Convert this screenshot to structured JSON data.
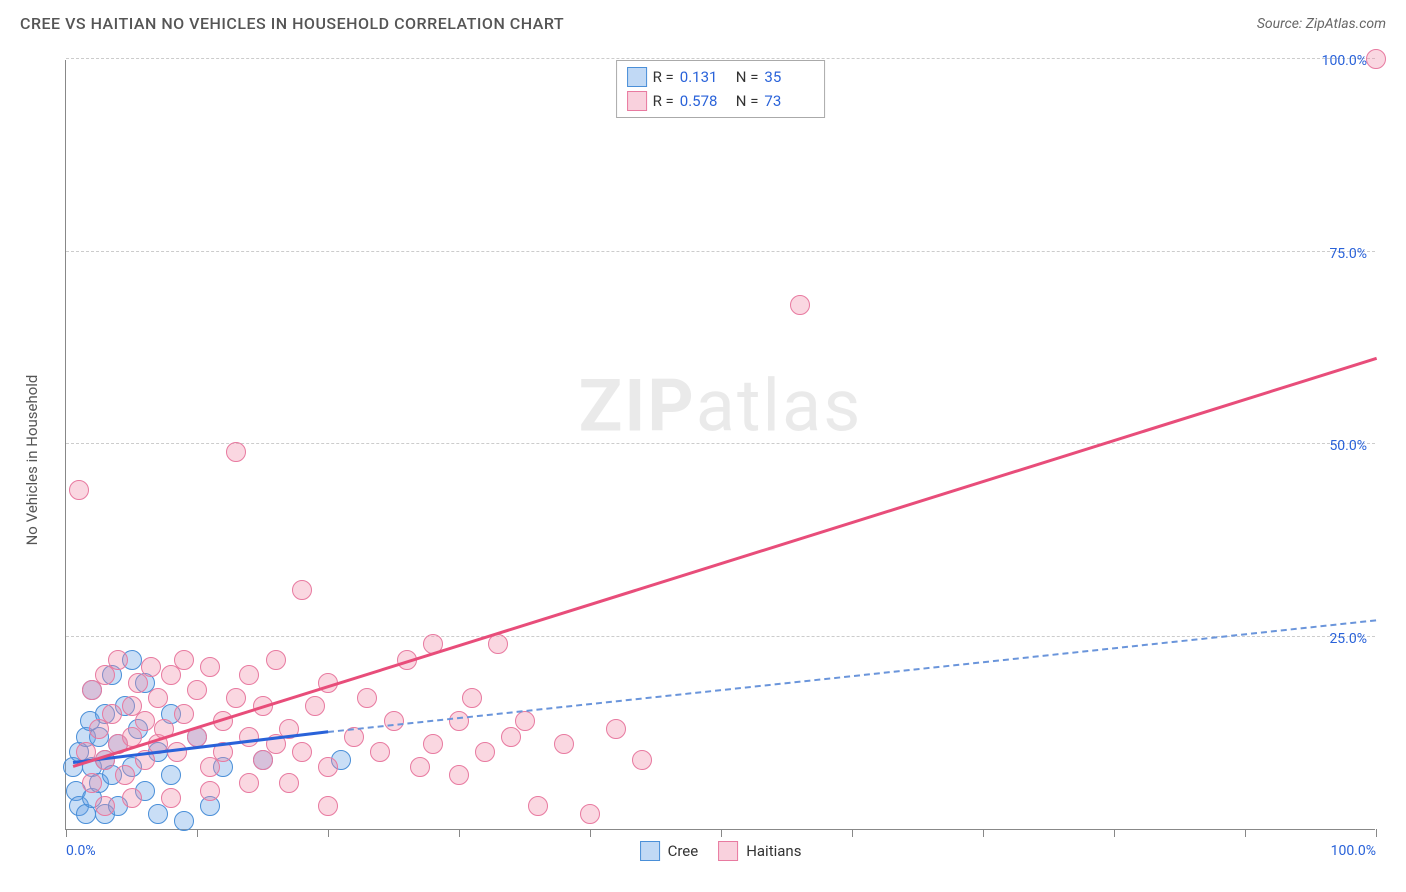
{
  "title": "CREE VS HAITIAN NO VEHICLES IN HOUSEHOLD CORRELATION CHART",
  "source": "Source: ZipAtlas.com",
  "y_axis_label": "No Vehicles in Household",
  "watermark_bold": "ZIP",
  "watermark_light": "atlas",
  "chart": {
    "type": "scatter",
    "xlim": [
      0,
      100
    ],
    "ylim": [
      0,
      100
    ],
    "y_ticks": [
      25,
      50,
      75,
      100
    ],
    "y_tick_labels": [
      "25.0%",
      "50.0%",
      "75.0%",
      "100.0%"
    ],
    "x_ticks": [
      0,
      10,
      20,
      30,
      40,
      50,
      60,
      70,
      80,
      90,
      100
    ],
    "x_tick_min_label": "0.0%",
    "x_tick_max_label": "100.0%",
    "grid_color": "#cccccc",
    "axis_color": "#888888",
    "background_color": "#ffffff",
    "marker_radius": 10,
    "series": [
      {
        "name_key": "Cree",
        "color_fill": "rgba(100,160,230,0.35)",
        "color_stroke": "#4a8fd8",
        "points": [
          [
            0.5,
            8
          ],
          [
            0.8,
            5
          ],
          [
            1,
            10
          ],
          [
            1,
            3
          ],
          [
            1.5,
            12
          ],
          [
            1.5,
            2
          ],
          [
            1.8,
            14
          ],
          [
            2,
            8
          ],
          [
            2,
            4
          ],
          [
            2,
            18
          ],
          [
            2.5,
            6
          ],
          [
            2.5,
            12
          ],
          [
            3,
            9
          ],
          [
            3,
            15
          ],
          [
            3,
            2
          ],
          [
            3.5,
            20
          ],
          [
            3.5,
            7
          ],
          [
            4,
            11
          ],
          [
            4,
            3
          ],
          [
            4.5,
            16
          ],
          [
            5,
            8
          ],
          [
            5,
            22
          ],
          [
            5.5,
            13
          ],
          [
            6,
            5
          ],
          [
            6,
            19
          ],
          [
            7,
            10
          ],
          [
            7,
            2
          ],
          [
            8,
            15
          ],
          [
            8,
            7
          ],
          [
            9,
            1
          ],
          [
            10,
            12
          ],
          [
            11,
            3
          ],
          [
            12,
            8
          ],
          [
            15,
            9
          ],
          [
            21,
            9
          ]
        ],
        "trend": {
          "x1": 0.5,
          "y1": 8.5,
          "x2": 20,
          "y2": 12.5,
          "dash_x2": 100,
          "dash_y2": 27,
          "color": "#2962d9"
        }
      },
      {
        "name_key": "Haitians",
        "color_fill": "rgba(240,140,170,0.35)",
        "color_stroke": "#e87aa0",
        "points": [
          [
            1,
            44
          ],
          [
            1.5,
            10
          ],
          [
            2,
            18
          ],
          [
            2,
            6
          ],
          [
            2.5,
            13
          ],
          [
            3,
            20
          ],
          [
            3,
            9
          ],
          [
            3.5,
            15
          ],
          [
            4,
            11
          ],
          [
            4,
            22
          ],
          [
            4.5,
            7
          ],
          [
            5,
            16
          ],
          [
            5,
            12
          ],
          [
            5.5,
            19
          ],
          [
            6,
            9
          ],
          [
            6,
            14
          ],
          [
            6.5,
            21
          ],
          [
            7,
            11
          ],
          [
            7,
            17
          ],
          [
            7.5,
            13
          ],
          [
            8,
            20
          ],
          [
            8.5,
            10
          ],
          [
            9,
            15
          ],
          [
            9,
            22
          ],
          [
            10,
            12
          ],
          [
            10,
            18
          ],
          [
            11,
            8
          ],
          [
            11,
            21
          ],
          [
            12,
            14
          ],
          [
            12,
            10
          ],
          [
            13,
            49
          ],
          [
            13,
            17
          ],
          [
            14,
            12
          ],
          [
            14,
            20
          ],
          [
            15,
            9
          ],
          [
            15,
            16
          ],
          [
            16,
            22
          ],
          [
            16,
            11
          ],
          [
            17,
            13
          ],
          [
            18,
            31
          ],
          [
            18,
            10
          ],
          [
            19,
            16
          ],
          [
            20,
            8
          ],
          [
            20,
            19
          ],
          [
            22,
            12
          ],
          [
            23,
            17
          ],
          [
            24,
            10
          ],
          [
            25,
            14
          ],
          [
            26,
            22
          ],
          [
            27,
            8
          ],
          [
            28,
            11
          ],
          [
            28,
            24
          ],
          [
            30,
            14
          ],
          [
            30,
            7
          ],
          [
            31,
            17
          ],
          [
            32,
            10
          ],
          [
            33,
            24
          ],
          [
            34,
            12
          ],
          [
            35,
            14
          ],
          [
            36,
            3
          ],
          [
            38,
            11
          ],
          [
            40,
            2
          ],
          [
            42,
            13
          ],
          [
            44,
            9
          ],
          [
            56,
            68
          ],
          [
            100,
            100
          ],
          [
            3,
            3
          ],
          [
            5,
            4
          ],
          [
            8,
            4
          ],
          [
            11,
            5
          ],
          [
            14,
            6
          ],
          [
            17,
            6
          ],
          [
            20,
            3
          ]
        ],
        "trend": {
          "x1": 0.5,
          "y1": 8,
          "x2": 100,
          "y2": 61,
          "color": "#e84d7a"
        }
      }
    ]
  },
  "stats_legend": {
    "rows": [
      {
        "swatch": "blue",
        "r_label": "R =",
        "r_val": "0.131",
        "n_label": "N =",
        "n_val": "35"
      },
      {
        "swatch": "pink",
        "r_label": "R =",
        "r_val": "0.578",
        "n_label": "N =",
        "n_val": "73"
      }
    ]
  },
  "bottom_legend": {
    "items": [
      {
        "swatch": "blue",
        "label": "Cree"
      },
      {
        "swatch": "pink",
        "label": "Haitians"
      }
    ]
  }
}
